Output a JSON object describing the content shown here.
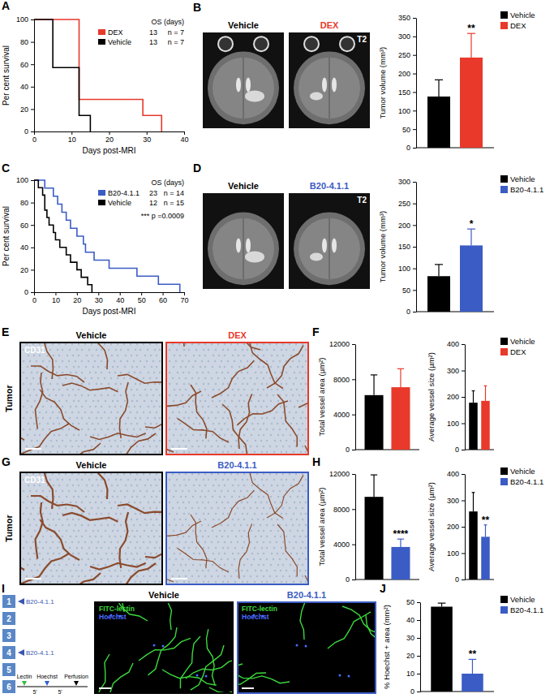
{
  "chart_data": [
    {
      "type": "line",
      "line_style": "step",
      "x_label": "Days post-MRI",
      "y_label": "Per cent survival",
      "xlim": [
        0,
        40
      ],
      "xticks": [
        0,
        10,
        20,
        30,
        40
      ],
      "ylim": [
        0,
        100
      ],
      "yticks": [
        0,
        20,
        40,
        60,
        80,
        100
      ],
      "legend": "top-right",
      "legend_title": "OS (days)",
      "series": [
        {
          "name": "DEX",
          "color": "#e8392b",
          "os": 13,
          "n_label": "n = 7",
          "x": [
            0,
            12,
            29,
            34
          ],
          "values": [
            100,
            28.6,
            14.3,
            0
          ]
        },
        {
          "name": "Vehicle",
          "color": "#000000",
          "os": 13,
          "n_label": "n = 7",
          "x": [
            0,
            5,
            12,
            15
          ],
          "values": [
            100,
            57.1,
            14.3,
            0
          ]
        }
      ]
    },
    {
      "type": "bar",
      "y_label": "Tumor volume (mm³)",
      "categories": [
        "Vehicle",
        "DEX"
      ],
      "values": [
        138,
        243
      ],
      "errors": [
        45,
        65
      ],
      "colors": [
        "#000000",
        "#e8392b"
      ],
      "ylim": [
        0,
        350
      ],
      "yticks": [
        0,
        50,
        100,
        150,
        200,
        250,
        300,
        350
      ],
      "tick_labels": "y",
      "legend": "top-right",
      "annotation": "**"
    },
    {
      "type": "line",
      "line_style": "step",
      "x_label": "Days post-MRI",
      "y_label": "Per cent survival",
      "xlim": [
        0,
        70
      ],
      "xticks": [
        0,
        10,
        20,
        30,
        40,
        50,
        60,
        70
      ],
      "ylim": [
        0,
        100
      ],
      "yticks": [
        0,
        20,
        40,
        60,
        80,
        100
      ],
      "legend": "top-right",
      "legend_title": "OS (days)",
      "annotation": "*** p =0.0009",
      "series": [
        {
          "name": "B20-4.1.1",
          "color": "#3b5cc4",
          "os": 23,
          "n_label": "n = 14",
          "x": [
            0,
            5,
            9,
            11,
            13,
            15,
            17,
            20,
            23,
            24,
            28,
            35,
            48,
            58,
            68
          ],
          "values": [
            100,
            92.9,
            85.7,
            78.6,
            71.4,
            64.3,
            57.1,
            50,
            42.9,
            35.7,
            28.6,
            21.4,
            14.3,
            7.1,
            0
          ]
        },
        {
          "name": "Vehicle",
          "color": "#000000",
          "os": 12,
          "n_label": "n = 15",
          "x": [
            0,
            2,
            4,
            5,
            6,
            7,
            9,
            10,
            12,
            15,
            17,
            20,
            22,
            25,
            27
          ],
          "values": [
            100,
            93.3,
            86.7,
            73.3,
            66.7,
            60,
            53.3,
            46.7,
            40,
            33.3,
            26.7,
            20,
            13.3,
            6.7,
            0
          ]
        }
      ]
    },
    {
      "type": "bar",
      "y_label": "Tumor volume (mm³)",
      "categories": [
        "Vehicle",
        "B20-4.1.1"
      ],
      "values": [
        82,
        153
      ],
      "errors": [
        27,
        38
      ],
      "colors": [
        "#000000",
        "#3b5cc4"
      ],
      "ylim": [
        0,
        300
      ],
      "yticks": [
        0,
        50,
        100,
        150,
        200,
        250,
        300
      ],
      "tick_labels": "y",
      "legend": "top-right",
      "annotation": "*"
    },
    {
      "type": "bar",
      "y_label": "Total vessel area (µm²)",
      "categories": [
        "Vehicle",
        "DEX"
      ],
      "values": [
        6200,
        7100
      ],
      "errors": [
        2300,
        2100
      ],
      "colors": [
        "#000000",
        "#e8392b"
      ],
      "ylim": [
        0,
        12000
      ],
      "yticks": [
        0,
        4000,
        8000,
        12000
      ],
      "tick_labels": "y"
    },
    {
      "type": "bar",
      "y_label": "Average vessel size (µm²)",
      "categories": [
        "Vehicle",
        "DEX"
      ],
      "values": [
        178,
        185
      ],
      "errors": [
        45,
        57
      ],
      "colors": [
        "#000000",
        "#e8392b"
      ],
      "ylim": [
        0,
        400
      ],
      "yticks": [
        0,
        100,
        200,
        300,
        400
      ],
      "tick_labels": "y",
      "legend": "top-right"
    },
    {
      "type": "bar",
      "y_label": "Total vessel area (µm²)",
      "categories": [
        "Vehicle",
        "B20-4.1.1"
      ],
      "values": [
        9400,
        3700
      ],
      "errors": [
        2500,
        900
      ],
      "colors": [
        "#000000",
        "#3b5cc4"
      ],
      "ylim": [
        0,
        12000
      ],
      "yticks": [
        0,
        4000,
        8000,
        12000
      ],
      "tick_labels": "y",
      "annotation": "****"
    },
    {
      "type": "bar",
      "y_label": "Average vessel size (µm²)",
      "categories": [
        "Vehicle",
        "B20-4.1.1"
      ],
      "values": [
        258,
        162
      ],
      "errors": [
        72,
        45
      ],
      "colors": [
        "#000000",
        "#3b5cc4"
      ],
      "ylim": [
        0,
        400
      ],
      "yticks": [
        0,
        100,
        200,
        300,
        400
      ],
      "tick_labels": "y",
      "legend": "top-right",
      "annotation": "**"
    },
    {
      "type": "bar",
      "y_label": "% Hoechst + area (mm²)",
      "categories": [
        "Vehicle",
        "B20-4.1.1"
      ],
      "values": [
        47.5,
        10
      ],
      "errors": [
        2,
        8
      ],
      "colors": [
        "#000000",
        "#3b5cc4"
      ],
      "ylim": [
        0,
        50
      ],
      "yticks": [
        0,
        10,
        20,
        30,
        40,
        50
      ],
      "tick_labels": "y",
      "legend": "top-right",
      "annotation": "**"
    }
  ],
  "figure": {
    "panel_labels": [
      "A",
      "B",
      "C",
      "D",
      "E",
      "F",
      "G",
      "H",
      "I",
      "J"
    ],
    "mri_b": {
      "titles": [
        "Vehicle",
        "DEX"
      ],
      "colors": [
        "#000000",
        "#e8392b"
      ],
      "tag": "T2"
    },
    "mri_d": {
      "titles": [
        "Vehicle",
        "B20-4.1.1"
      ],
      "colors": [
        "#000000",
        "#3b5cc4"
      ],
      "tag": "T2"
    },
    "ihc_e": {
      "titles": [
        "Vehicle",
        "DEX"
      ],
      "colors": [
        "#000000",
        "#e8392b"
      ],
      "stain": "CD31",
      "region": "Tumor"
    },
    "ihc_g": {
      "titles": [
        "Vehicle",
        "B20-4.1.1"
      ],
      "colors": [
        "#000000",
        "#3b5cc4"
      ],
      "stain": "CD31",
      "region": "Tumor"
    },
    "fluor_i": {
      "titles": [
        "Vehicle",
        "B20-4.1.1"
      ],
      "colors": [
        "#000000",
        "#3b5cc4"
      ],
      "channels": [
        "FITC-lectin",
        "Hoechst"
      ],
      "channel_colors": [
        "#3cd93c",
        "#4a6cff"
      ]
    },
    "schedule": {
      "days": [
        1,
        2,
        3,
        4,
        5,
        6
      ],
      "treatment": "B20-4.1.1",
      "treatment_days": [
        1,
        4
      ],
      "steps": [
        "Lectin",
        "5'",
        "Hoechst",
        "5'",
        "Perfusion"
      ]
    }
  }
}
